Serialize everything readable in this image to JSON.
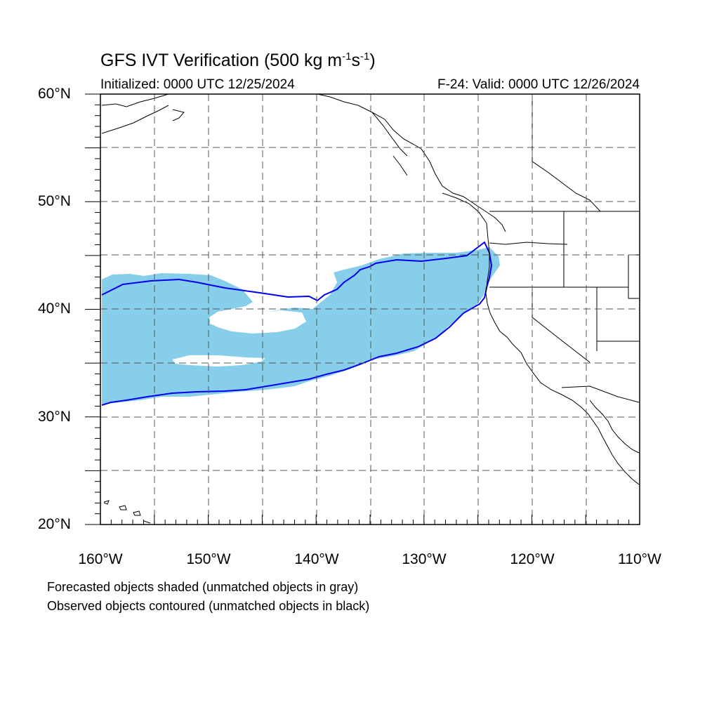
{
  "title": {
    "prefix": "GFS IVT Verification (500 kg m",
    "exp1": "-1",
    "mid": "s",
    "exp2": "-1",
    "suffix": ")"
  },
  "initialized": "Initialized: 0000 UTC 12/25/2024",
  "valid": "F-24: Valid: 0000 UTC 12/26/2024",
  "lat_labels": [
    "60°N",
    "50°N",
    "40°N",
    "30°N",
    "20°N"
  ],
  "lon_labels": [
    "160°W",
    "150°W",
    "140°W",
    "130°W",
    "120°W",
    "110°W"
  ],
  "footnotes": [
    "Forecasted objects shaded (unmatched objects in gray)",
    "Observed objects contoured (unmatched objects in black)"
  ],
  "colors": {
    "forecast_fill": "#87ceeb",
    "observed_contour": "#0000ee",
    "coastline": "#000000",
    "grid": "#555555"
  },
  "map_extent": {
    "lon": [
      -160,
      -110
    ],
    "lat": [
      20,
      60
    ],
    "grid_step_deg": 5
  }
}
